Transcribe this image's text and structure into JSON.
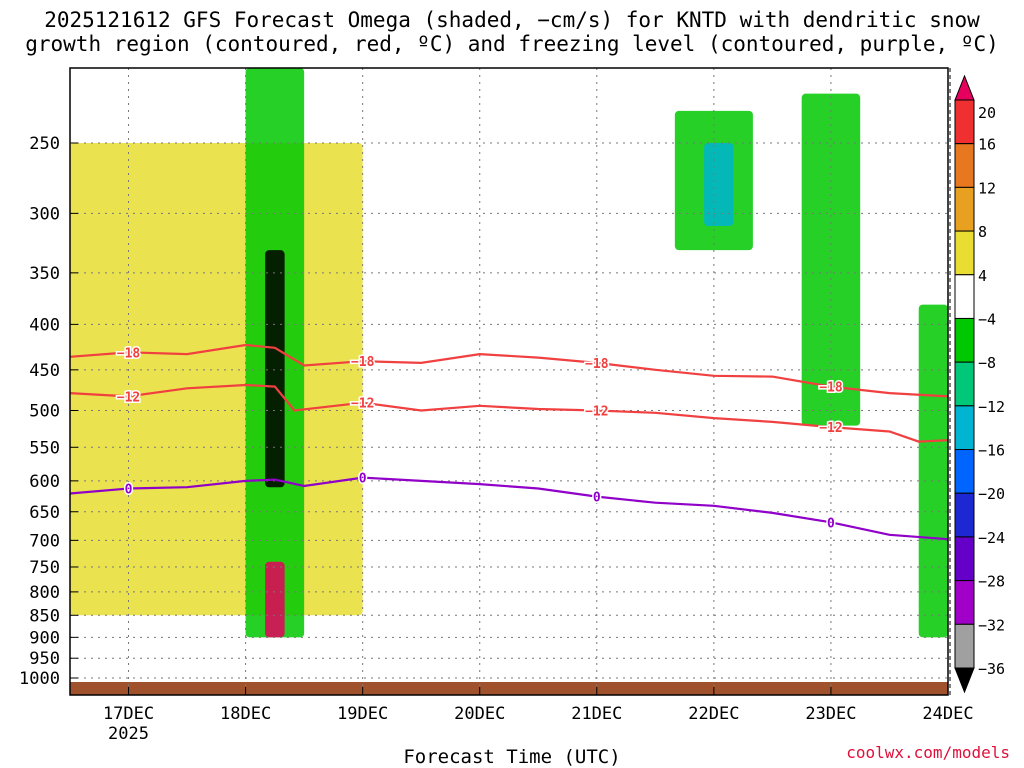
{
  "title_line1": "2025121612 GFS Forecast Omega (shaded, −cm/s) for KNTD with dendritic snow",
  "title_line2": "growth region (contoured, red, ºC) and freezing level (contoured, purple, ºC)",
  "credit": "coolwx.com/models",
  "chart_data": {
    "type": "heatmap",
    "title": "2025121612 GFS Forecast Omega (shaded, −cm/s) for KNTD with dendritic snow growth region (contoured, red, ºC) and freezing level (contoured, purple, ºC)",
    "xlabel": "Forecast Time (UTC)",
    "ylabel": "",
    "x_range": [
      "2025-12-16T12",
      "2025-12-24T00"
    ],
    "x_ticks": [
      "17DEC",
      "18DEC",
      "19DEC",
      "20DEC",
      "21DEC",
      "22DEC",
      "23DEC",
      "24DEC"
    ],
    "x_tick_sublabel": "2025",
    "y_scale": "log-pressure (hPa, inverted)",
    "y_range": [
      1020,
      200
    ],
    "y_ticks": [
      250,
      300,
      350,
      400,
      450,
      500,
      550,
      600,
      650,
      700,
      750,
      800,
      850,
      900,
      950,
      1000
    ],
    "grid": true,
    "colorbar": {
      "labels": [
        "20",
        "16",
        "12",
        "8",
        "4",
        "−4",
        "−8",
        "−12",
        "−16",
        "−20",
        "−24",
        "−28",
        "−32",
        "−36"
      ],
      "colors": [
        "#e5005e",
        "#f03030",
        "#e87820",
        "#e8a020",
        "#e8dd30",
        "#ffffff",
        "#00c800",
        "#00c878",
        "#00b4d2",
        "#0064ff",
        "#1e28d2",
        "#6400c8",
        "#a000c8",
        "#a0a0a0",
        "#000000"
      ]
    },
    "contours": [
      {
        "name": "-18",
        "color": "#f04040",
        "label_text": "−18",
        "points": [
          [
            "2025-12-16T12",
            435
          ],
          [
            "2025-12-17T00",
            430
          ],
          [
            "2025-12-17T12",
            432
          ],
          [
            "2025-12-18T00",
            422
          ],
          [
            "2025-12-18T06",
            425
          ],
          [
            "2025-12-18T12",
            445
          ],
          [
            "2025-12-19T00",
            440
          ],
          [
            "2025-12-19T12",
            442
          ],
          [
            "2025-12-20T00",
            432
          ],
          [
            "2025-12-20T12",
            436
          ],
          [
            "2025-12-21T00",
            442
          ],
          [
            "2025-12-21T12",
            450
          ],
          [
            "2025-12-22T00",
            457
          ],
          [
            "2025-12-22T12",
            458
          ],
          [
            "2025-12-23T00",
            470
          ],
          [
            "2025-12-23T12",
            478
          ],
          [
            "2025-12-24T00",
            482
          ]
        ]
      },
      {
        "name": "-12",
        "color": "#f04040",
        "label_text": "−12",
        "points": [
          [
            "2025-12-16T12",
            478
          ],
          [
            "2025-12-17T00",
            482
          ],
          [
            "2025-12-17T12",
            472
          ],
          [
            "2025-12-18T00",
            468
          ],
          [
            "2025-12-18T06",
            470
          ],
          [
            "2025-12-18T10",
            500
          ],
          [
            "2025-12-19T00",
            490
          ],
          [
            "2025-12-19T12",
            500
          ],
          [
            "2025-12-20T00",
            494
          ],
          [
            "2025-12-20T12",
            498
          ],
          [
            "2025-12-21T00",
            500
          ],
          [
            "2025-12-21T12",
            503
          ],
          [
            "2025-12-22T00",
            510
          ],
          [
            "2025-12-22T12",
            515
          ],
          [
            "2025-12-23T00",
            522
          ],
          [
            "2025-12-23T12",
            528
          ],
          [
            "2025-12-23T18",
            542
          ],
          [
            "2025-12-24T00",
            540
          ]
        ]
      },
      {
        "name": "0",
        "color": "#9000c8",
        "label_text": "0",
        "points": [
          [
            "2025-12-16T12",
            620
          ],
          [
            "2025-12-17T00",
            612
          ],
          [
            "2025-12-17T12",
            610
          ],
          [
            "2025-12-18T00",
            600
          ],
          [
            "2025-12-18T06",
            598
          ],
          [
            "2025-12-18T12",
            608
          ],
          [
            "2025-12-19T00",
            595
          ],
          [
            "2025-12-19T12",
            600
          ],
          [
            "2025-12-20T00",
            605
          ],
          [
            "2025-12-20T12",
            612
          ],
          [
            "2025-12-21T00",
            625
          ],
          [
            "2025-12-21T12",
            635
          ],
          [
            "2025-12-22T00",
            640
          ],
          [
            "2025-12-22T12",
            652
          ],
          [
            "2025-12-23T00",
            668
          ],
          [
            "2025-12-23T12",
            690
          ],
          [
            "2025-12-24T00",
            698
          ]
        ]
      }
    ],
    "omega_regions": [
      {
        "x": [
          "2025-12-18T04",
          "2025-12-18T08"
        ],
        "p": [
          330,
          610
        ],
        "value": -36
      },
      {
        "x": [
          "2025-12-18T04",
          "2025-12-18T08"
        ],
        "p": [
          740,
          900
        ],
        "value": 20
      },
      {
        "x": [
          "2025-12-21T22",
          "2025-12-22T04"
        ],
        "p": [
          250,
          310
        ],
        "value": -16
      },
      {
        "x": [
          "2025-12-18T00",
          "2025-12-18T12"
        ],
        "p": [
          200,
          900
        ],
        "value": -8
      },
      {
        "x": [
          "2025-12-21T16",
          "2025-12-22T08"
        ],
        "p": [
          230,
          330
        ],
        "value": -8
      },
      {
        "x": [
          "2025-12-22T18",
          "2025-12-23T06"
        ],
        "p": [
          220,
          520
        ],
        "value": -8
      },
      {
        "x": [
          "2025-12-23T18",
          "2025-12-24T00"
        ],
        "p": [
          380,
          900
        ],
        "value": -8
      },
      {
        "x": [
          "2025-12-16T12",
          "2025-12-19T00"
        ],
        "p": [
          250,
          850
        ],
        "value": 4
      }
    ]
  }
}
